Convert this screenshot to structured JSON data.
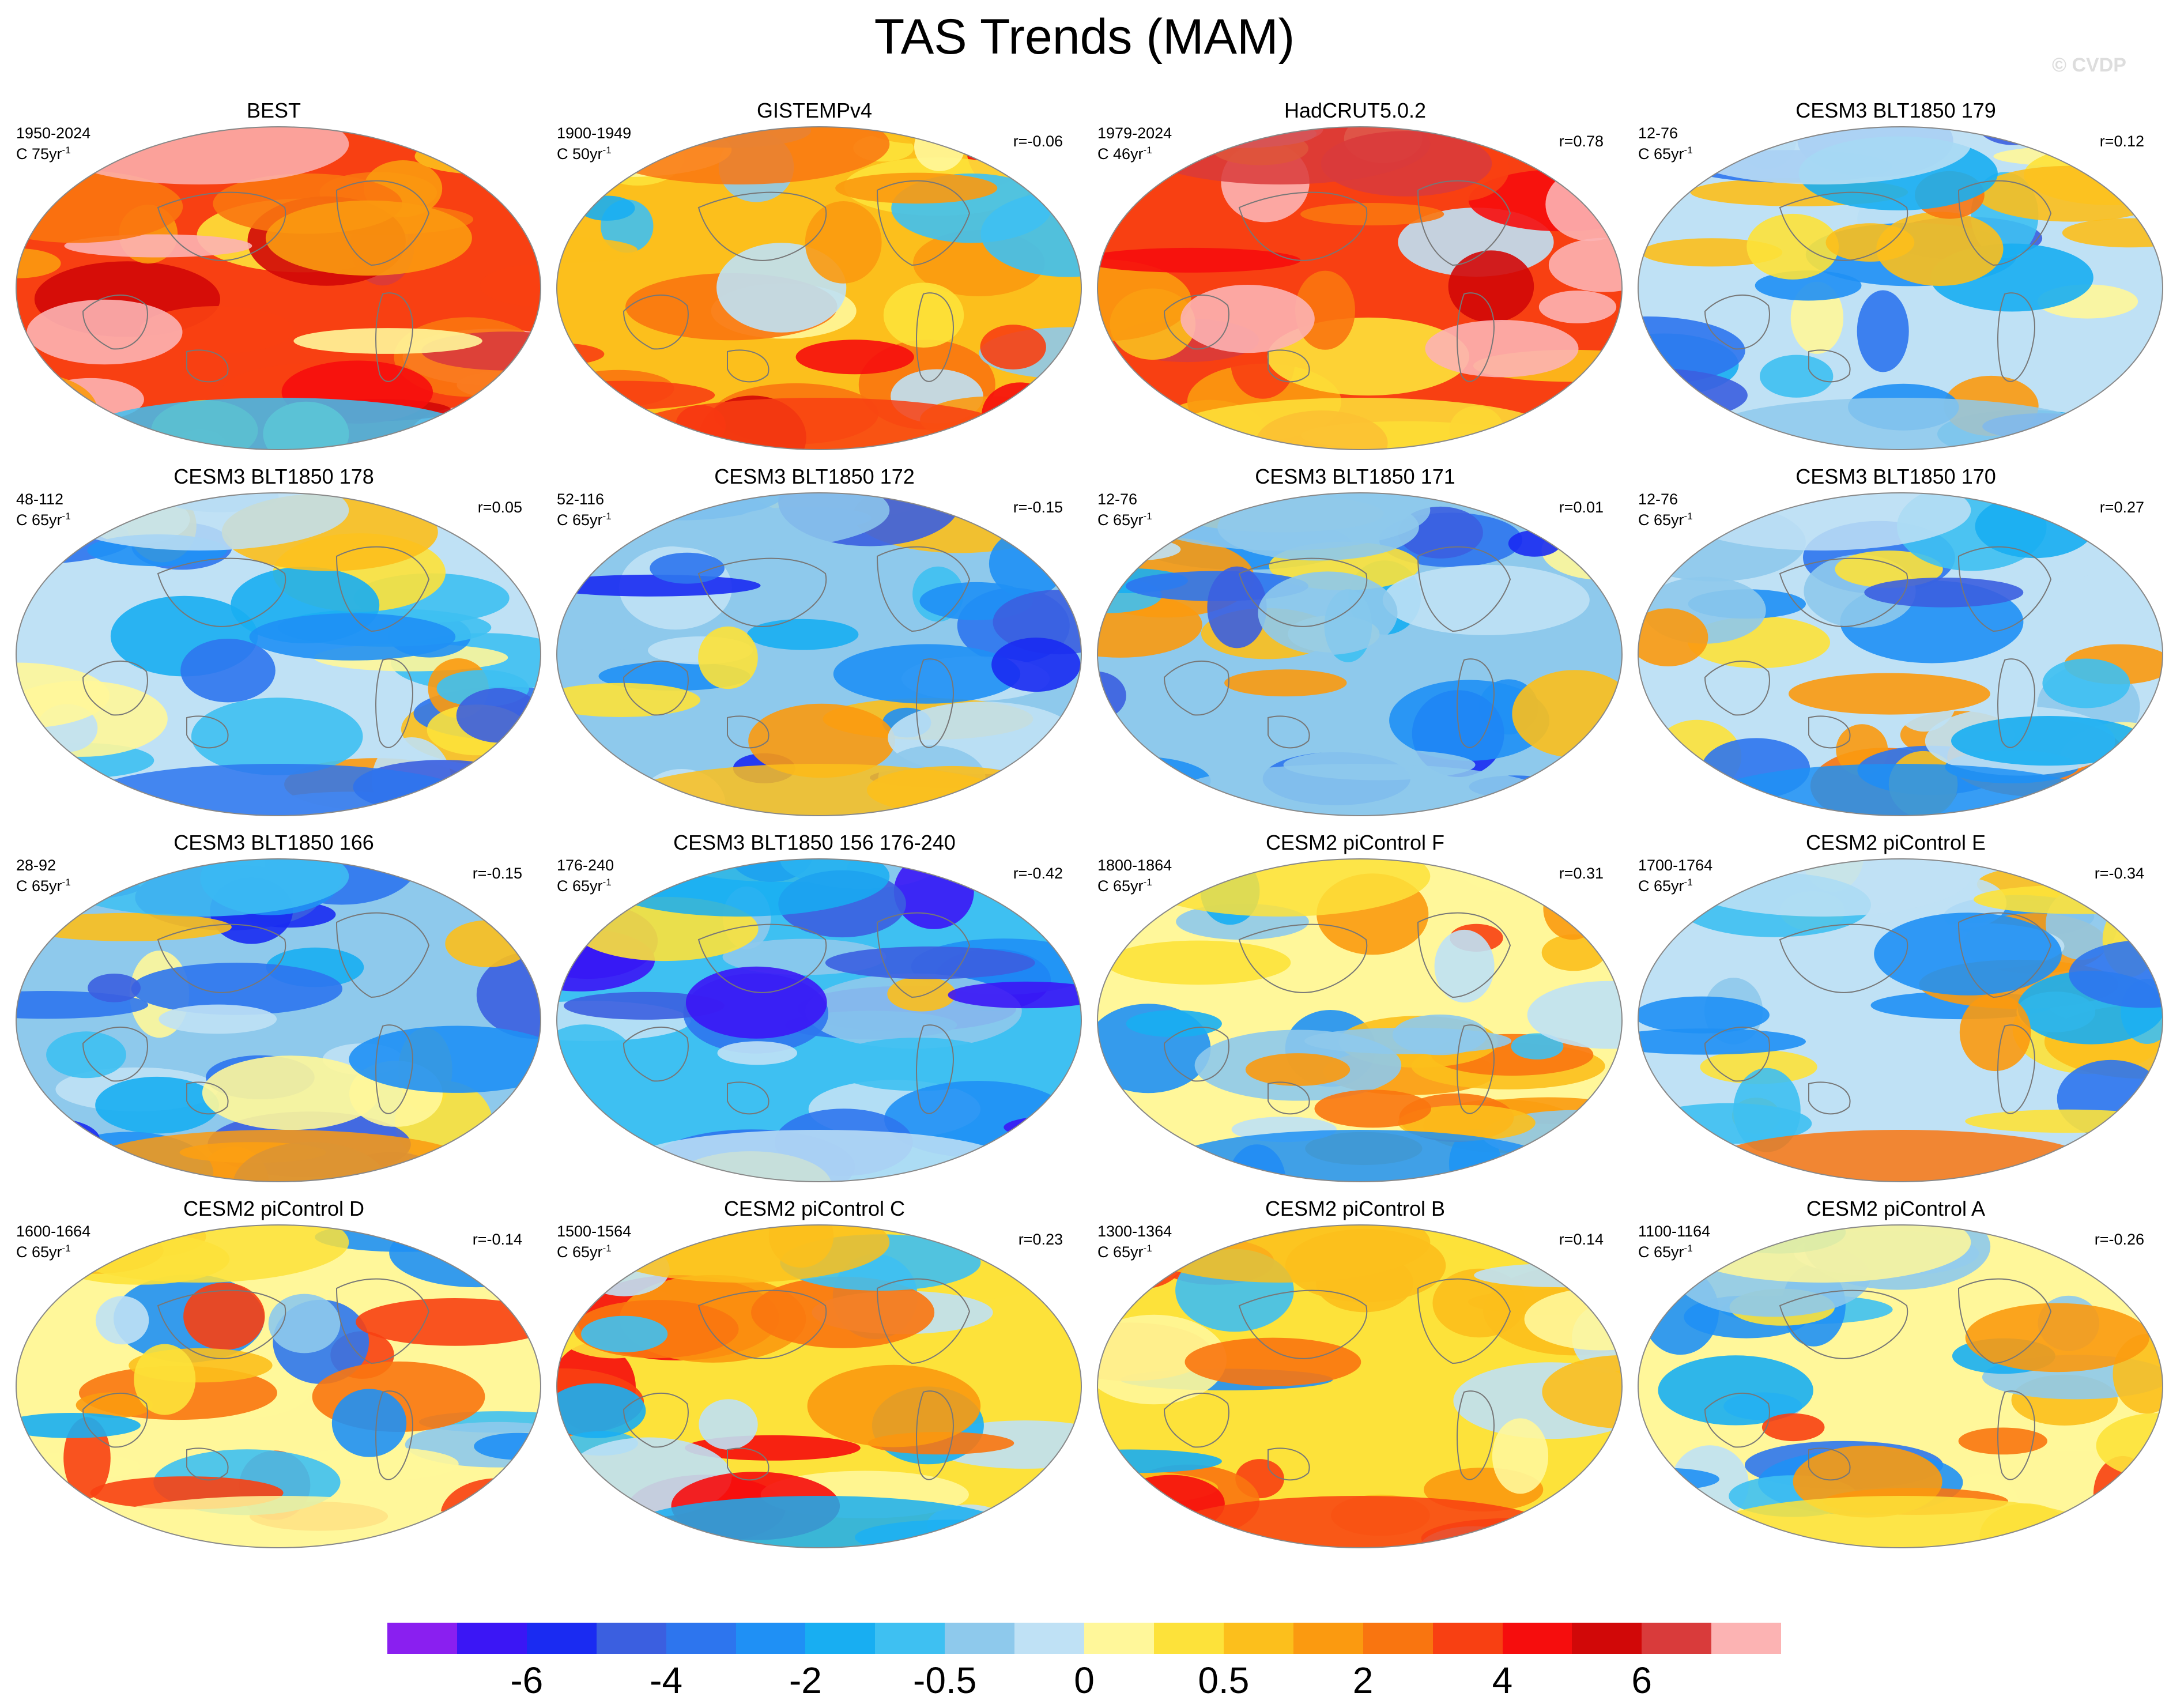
{
  "figure": {
    "title": "TAS Trends (MAM)",
    "watermark": "© CVDP"
  },
  "panels": [
    {
      "title": "BEST",
      "period": "1950-2024",
      "scale": "C 75yr",
      "corr": "",
      "warm": 1.0
    },
    {
      "title": "GISTEMPv4",
      "period": "1900-1949",
      "scale": "C 50yr",
      "corr": "r=-0.06",
      "warm": 0.62
    },
    {
      "title": "HadCRUT5.0.2",
      "period": "1979-2024",
      "scale": "C 46yr",
      "corr": "r=0.78",
      "warm": 0.95
    },
    {
      "title": "CESM3 BLT1850 179",
      "period": "12-76",
      "scale": "C 65yr",
      "corr": "r=0.12",
      "warm": 0.25
    },
    {
      "title": "CESM3 BLT1850 178",
      "period": "48-112",
      "scale": "C 65yr",
      "corr": "r=0.05",
      "warm": 0.28
    },
    {
      "title": "CESM3 BLT1850 172",
      "period": "52-116",
      "scale": "C 65yr",
      "corr": "r=-0.15",
      "warm": 0.18
    },
    {
      "title": "CESM3 BLT1850 171",
      "period": "12-76",
      "scale": "C 65yr",
      "corr": "r=0.01",
      "warm": 0.22
    },
    {
      "title": "CESM3 BLT1850 170",
      "period": "12-76",
      "scale": "C 65yr",
      "corr": "r=0.27",
      "warm": 0.3
    },
    {
      "title": "CESM3 BLT1850 166",
      "period": "28-92",
      "scale": "C 65yr",
      "corr": "r=-0.15",
      "warm": 0.15
    },
    {
      "title": "CESM3 BLT1850 156 176-240",
      "period": "176-240",
      "scale": "C 65yr",
      "corr": "r=-0.42",
      "warm": 0.08
    },
    {
      "title": "CESM2 piControl F",
      "period": "1800-1864",
      "scale": "C 65yr",
      "corr": "r=0.31",
      "warm": 0.4
    },
    {
      "title": "CESM2 piControl E",
      "period": "1700-1764",
      "scale": "C 65yr",
      "corr": "r=-0.34",
      "warm": 0.3
    },
    {
      "title": "CESM2 piControl D",
      "period": "1600-1664",
      "scale": "C 65yr",
      "corr": "r=-0.14",
      "warm": 0.45
    },
    {
      "title": "CESM2 piControl C",
      "period": "1500-1564",
      "scale": "C 65yr",
      "corr": "r=0.23",
      "warm": 0.5
    },
    {
      "title": "CESM2 piControl B",
      "period": "1300-1364",
      "scale": "C 65yr",
      "corr": "r=0.14",
      "warm": 0.48
    },
    {
      "title": "CESM2 piControl A",
      "period": "1100-1164",
      "scale": "C 65yr",
      "corr": "r=-0.26",
      "warm": 0.38
    }
  ],
  "scale_superscript": "-1",
  "colorbar": {
    "colors": [
      "#8a1ff0",
      "#3b16f5",
      "#1a2bf2",
      "#3b5fe0",
      "#2d75ee",
      "#1f90f5",
      "#18aef2",
      "#3ec0f2",
      "#8ec9ec",
      "#bfe1f5",
      "#fff79a",
      "#fde23a",
      "#fcbf1c",
      "#fb9a10",
      "#f97510",
      "#f84012",
      "#f60d0d",
      "#d10808",
      "#d93b3b",
      "#fcb3b3"
    ],
    "labels": [
      {
        "text": "-6",
        "boundary": 2
      },
      {
        "text": "-4",
        "boundary": 4
      },
      {
        "text": "-2",
        "boundary": 6
      },
      {
        "text": "-0.5",
        "boundary": 8
      },
      {
        "text": "0",
        "boundary": 10
      },
      {
        "text": "0.5",
        "boundary": 12
      },
      {
        "text": "2",
        "boundary": 14
      },
      {
        "text": "4",
        "boundary": 16
      },
      {
        "text": "6",
        "boundary": 18
      }
    ]
  }
}
